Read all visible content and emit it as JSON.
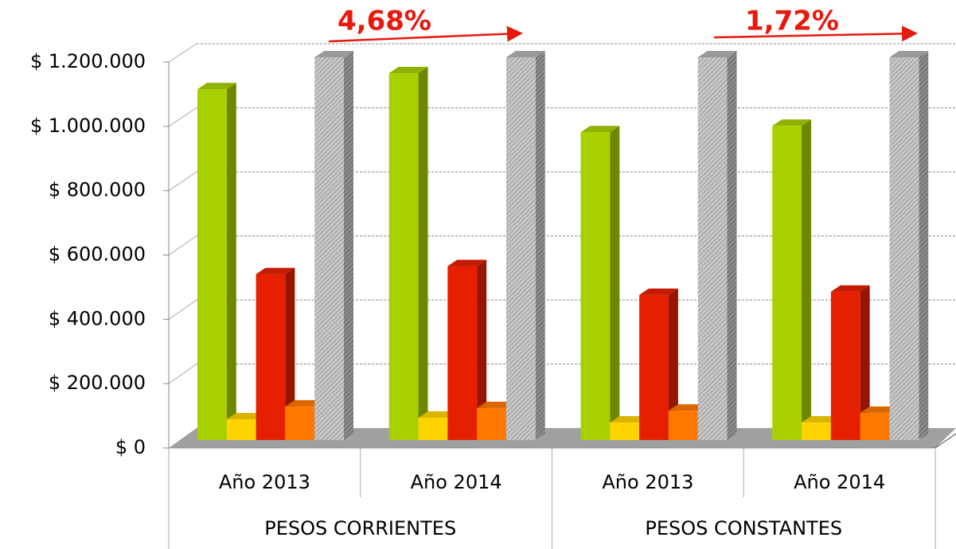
{
  "chart_data": {
    "type": "bar3d",
    "categories": [
      "Año 2013",
      "Año 2014",
      "Año 2013",
      "Año 2014"
    ],
    "category_groups": [
      "PESOS CORRIENTES",
      "PESOS CONSTANTES"
    ],
    "series": [
      {
        "color": "#a8d000",
        "values": [
          1100000,
          1150000,
          965000,
          985000
        ]
      },
      {
        "color": "#ffd400",
        "values": [
          65000,
          70000,
          55000,
          55000
        ]
      },
      {
        "color": "#e52000",
        "values": [
          520000,
          545000,
          455000,
          465000
        ]
      },
      {
        "color": "#ff7800",
        "values": [
          105000,
          100000,
          92000,
          85000
        ]
      },
      {
        "color": "#bdbdbd",
        "values": [
          1200000,
          1200000,
          1200000,
          1200000
        ]
      }
    ],
    "ylim": [
      0,
      1200000
    ],
    "yticks": [
      {
        "value": 0,
        "label": "$ 0"
      },
      {
        "value": 200000,
        "label": "$ 200.000"
      },
      {
        "value": 400000,
        "label": "$ 400.000"
      },
      {
        "value": 600000,
        "label": "$ 600.000"
      },
      {
        "value": 800000,
        "label": "$ 800.000"
      },
      {
        "value": 1000000,
        "label": "$ 1.000.000"
      },
      {
        "value": 1200000,
        "label": "$ 1.200.000"
      }
    ],
    "grid": true,
    "annotations": [
      "4,68%",
      "1,72%"
    ]
  }
}
